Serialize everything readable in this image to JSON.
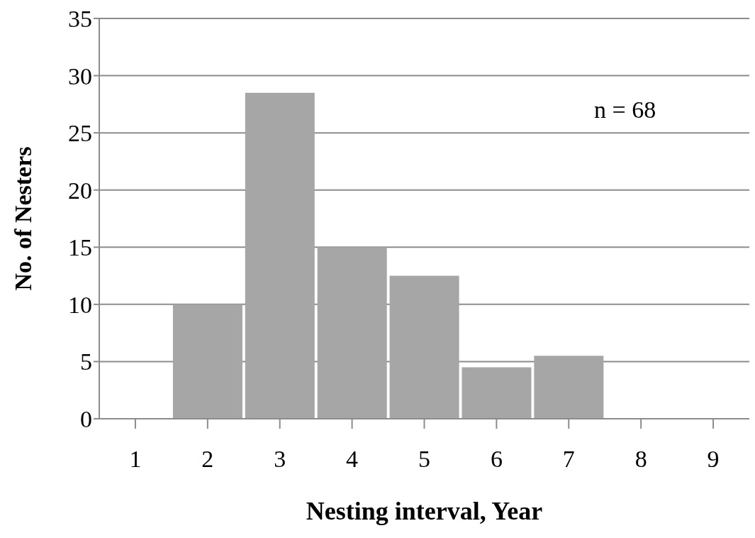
{
  "chart_data": {
    "type": "bar",
    "xlabel": "Nesting interval, Year",
    "ylabel": "No. of Nesters",
    "categories": [
      "1",
      "2",
      "3",
      "4",
      "5",
      "6",
      "7",
      "8",
      "9"
    ],
    "values": [
      0,
      10,
      28.5,
      15,
      12.5,
      4.5,
      5.5,
      0,
      0
    ],
    "color": "#a6a6a6",
    "ylim": [
      0,
      35
    ],
    "yticks": [
      0,
      5,
      10,
      15,
      20,
      25,
      30,
      35
    ],
    "grid": "y",
    "annotations": [
      "n = 68"
    ]
  }
}
